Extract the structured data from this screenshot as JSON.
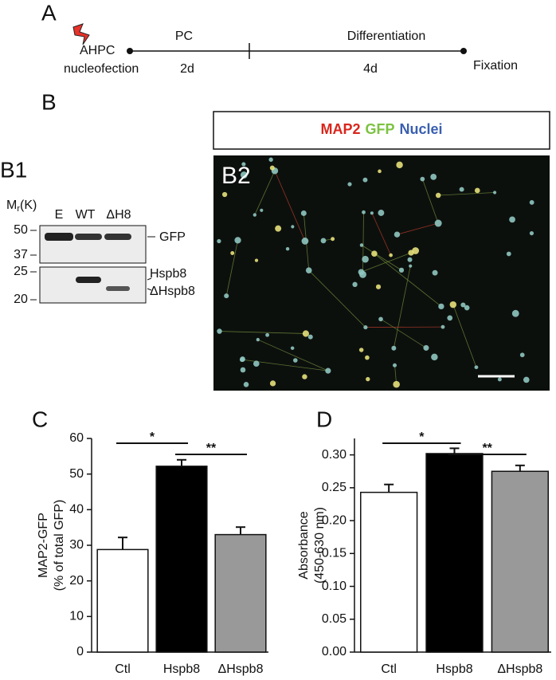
{
  "panel_a": {
    "letter": "A",
    "start_label": [
      "AHPC",
      "nucleofection"
    ],
    "phase1": "PC",
    "phase1_duration": "2d",
    "phase2": "Differentiation",
    "phase2_duration": "4d",
    "end_label": "Fixation"
  },
  "panel_b": {
    "letter": "B",
    "b1": {
      "letter": "B1",
      "mr_label": {
        "main": "M",
        "sub": "r",
        "suffix": "(K)"
      },
      "markers": [
        "50",
        "37",
        "25",
        "20"
      ],
      "lanes": [
        "E",
        "WT",
        "ΔH8"
      ],
      "bands": [
        "GFP",
        "Hspb8",
        "ΔHspb8"
      ]
    },
    "b2": {
      "letter": "B2",
      "legend": [
        {
          "text": "MAP2",
          "color": "#d9261c"
        },
        {
          "text": "GFP",
          "color": "#7dc242"
        },
        {
          "text": "Nuclei",
          "color": "#3a5fb0"
        }
      ]
    }
  },
  "chart_data": [
    {
      "type": "bar",
      "panel": "C",
      "ylabel": [
        "MAP2-GFP",
        "(% of total GFP)"
      ],
      "categories": [
        "Ctl",
        "Hspb8",
        "ΔHspb8"
      ],
      "values": [
        28.8,
        52.2,
        33.0
      ],
      "errors": [
        3.4,
        1.8,
        2.1
      ],
      "colors": [
        "#ffffff",
        "#000000",
        "#999999"
      ],
      "ylim": [
        0,
        60
      ],
      "yticks": [
        0,
        10,
        20,
        30,
        40,
        50,
        60
      ],
      "significance": [
        {
          "label": "*",
          "pair": [
            "Ctl",
            "Hspb8"
          ]
        },
        {
          "label": "**",
          "pair": [
            "Hspb8",
            "ΔHspb8"
          ]
        }
      ]
    },
    {
      "type": "bar",
      "panel": "D",
      "ylabel": [
        "Absorbance",
        "(450-630 nm)"
      ],
      "categories": [
        "Ctl",
        "Hspb8",
        "ΔHspb8"
      ],
      "values": [
        0.243,
        0.302,
        0.275
      ],
      "errors": [
        0.012,
        0.008,
        0.009
      ],
      "colors": [
        "#ffffff",
        "#000000",
        "#999999"
      ],
      "ylim": [
        0,
        0.325
      ],
      "yticks": [
        {
          "value": 0,
          "label": "0.00"
        },
        {
          "value": 0.05,
          "label": "0.05"
        },
        {
          "value": 0.1,
          "label": "0.10"
        },
        {
          "value": 0.15,
          "label": "0.15"
        },
        {
          "value": 0.2,
          "label": "0.20"
        },
        {
          "value": 0.25,
          "label": "0.25"
        },
        {
          "value": 0.3,
          "label": "0.30"
        }
      ],
      "significance": [
        {
          "label": "*",
          "pair": [
            "Ctl",
            "Hspb8"
          ]
        },
        {
          "label": "**",
          "pair": [
            "Hspb8",
            "ΔHspb8"
          ]
        }
      ]
    }
  ]
}
